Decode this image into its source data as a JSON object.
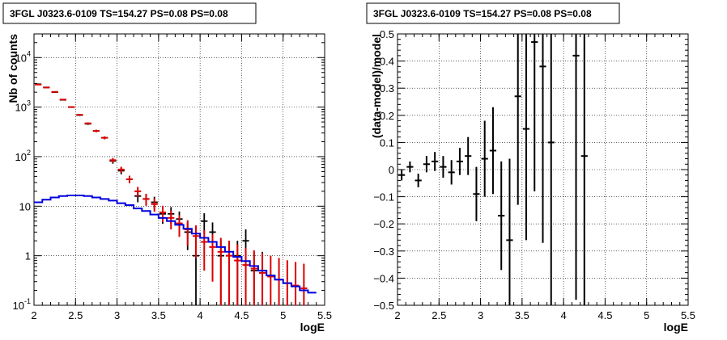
{
  "chart_data": [
    {
      "type": "line",
      "title": "3FGL J0323.6-0109 TS=154.27 PS=0.08 PS=0.08",
      "xlabel": "logE",
      "ylabel": "Nb of counts",
      "xlim": [
        2,
        5.5
      ],
      "ylim": [
        0.1,
        30000
      ],
      "yscale": "log",
      "grid": true,
      "x_ticks": [
        "2",
        "2.5",
        "3",
        "3.5",
        "4",
        "4.5",
        "5",
        "5.5"
      ],
      "y_ticks": [
        {
          "base": "10",
          "exp": "-1"
        },
        {
          "base": "1",
          "exp": ""
        },
        {
          "base": "10",
          "exp": ""
        },
        {
          "base": "10",
          "exp": "2"
        },
        {
          "base": "10",
          "exp": "3"
        },
        {
          "base": "10",
          "exp": "4"
        }
      ],
      "colors": {
        "data": "#000000",
        "model": "#dd0000",
        "background": "#0000dd"
      },
      "series": [
        {
          "style": "errorbar",
          "x": [
            2.05,
            2.15,
            2.25,
            2.35,
            2.45,
            2.55,
            2.65,
            2.75,
            2.85,
            2.95,
            3.05,
            3.15,
            3.25,
            3.35,
            3.45,
            3.55,
            3.65,
            3.75,
            3.85,
            3.95,
            4.05,
            4.15,
            4.25,
            4.35,
            4.45,
            4.55,
            4.65,
            4.75,
            4.85,
            4.95,
            5.05,
            5.15,
            5.25
          ],
          "y": [
            2900,
            2500,
            2000,
            1400,
            1000,
            690,
            460,
            330,
            240,
            82,
            52,
            35,
            16,
            14,
            12,
            7,
            7,
            5.5,
            3,
            1,
            5,
            3,
            1,
            1,
            1,
            2,
            0.5,
            0.5,
            0,
            0,
            0,
            0,
            0
          ],
          "yerr": [
            60,
            55,
            50,
            40,
            35,
            28,
            22,
            18,
            16,
            10,
            8,
            6,
            4,
            3.8,
            3.5,
            2.6,
            2.6,
            2.3,
            1.7,
            1,
            2.2,
            1.7,
            1,
            1,
            1,
            1.4,
            0.7,
            0.7,
            0,
            0,
            0,
            0,
            0
          ]
        },
        {
          "style": "errorbar",
          "x": [
            2.05,
            2.15,
            2.25,
            2.35,
            2.45,
            2.55,
            2.65,
            2.75,
            2.85,
            2.95,
            3.05,
            3.15,
            3.25,
            3.35,
            3.45,
            3.55,
            3.65,
            3.75,
            3.85,
            3.95,
            4.05,
            4.15,
            4.25,
            4.35,
            4.45,
            4.55,
            4.65,
            4.75,
            4.85,
            4.95,
            5.05,
            5.15,
            5.25
          ],
          "y": [
            2850,
            2480,
            2030,
            1420,
            1000,
            700,
            470,
            330,
            240,
            85,
            55,
            35,
            20,
            14,
            11,
            7.5,
            5.8,
            4.5,
            3.4,
            2.5,
            1.9,
            1.5,
            1.2,
            1.0,
            0.8,
            0.65,
            0.55,
            0.45,
            0.38,
            0.33,
            0.28,
            0.25,
            0.22
          ],
          "yerr": [
            55,
            50,
            45,
            38,
            32,
            26,
            22,
            18,
            15,
            9,
            7.4,
            5.9,
            4.5,
            3.7,
            3.3,
            2.7,
            2.4,
            2.1,
            1.8,
            1.6,
            1.4,
            1.2,
            1.1,
            1.0,
            0.9,
            0.8,
            0.74,
            0.67,
            0.62,
            0.57,
            0.53,
            0.5,
            0.47
          ]
        },
        {
          "style": "step",
          "x": [
            2.0,
            2.1,
            2.2,
            2.3,
            2.4,
            2.5,
            2.6,
            2.7,
            2.8,
            2.9,
            3.0,
            3.1,
            3.2,
            3.3,
            3.4,
            3.5,
            3.6,
            3.7,
            3.8,
            3.9,
            4.0,
            4.1,
            4.2,
            4.3,
            4.4,
            4.5,
            4.6,
            4.7,
            4.8,
            4.9,
            5.0,
            5.1,
            5.2,
            5.3
          ],
          "y": [
            12,
            13.5,
            15,
            16,
            16.5,
            16.5,
            16,
            15,
            14,
            13,
            11.5,
            10.5,
            9,
            8,
            6.8,
            5.8,
            5,
            4.2,
            3.5,
            2.8,
            2.3,
            1.9,
            1.5,
            1.2,
            0.95,
            0.78,
            0.62,
            0.5,
            0.4,
            0.33,
            0.28,
            0.24,
            0.2,
            0.18
          ]
        }
      ]
    },
    {
      "type": "scatter",
      "title": "3FGL J0323.6-0109 TS=154.27 PS=0.08 PS=0.08",
      "xlabel": "logE",
      "ylabel": "(data-model)/model",
      "xlim": [
        2,
        5.5
      ],
      "ylim": [
        -0.5,
        0.5
      ],
      "grid": true,
      "x_ticks": [
        "2",
        "2.5",
        "3",
        "3.5",
        "4",
        "4.5",
        "5",
        "5.5"
      ],
      "y_ticks": [
        "−0.5",
        "−0.4",
        "−0.3",
        "−0.2",
        "−0.1",
        "0",
        "0.1",
        "0.2",
        "0.3",
        "0.4",
        "0.5"
      ],
      "colors": {
        "data": "#000000"
      },
      "series": [
        {
          "style": "errorbar",
          "x": [
            2.05,
            2.15,
            2.25,
            2.35,
            2.45,
            2.55,
            2.65,
            2.75,
            2.85,
            2.95,
            3.05,
            3.15,
            3.25,
            3.35,
            3.45,
            3.55,
            3.65,
            3.75,
            3.85,
            4.15,
            4.25
          ],
          "y": [
            -0.02,
            0.01,
            -0.04,
            0.02,
            0.03,
            0.01,
            -0.01,
            0.03,
            0.05,
            -0.09,
            0.04,
            0.07,
            -0.17,
            -0.26,
            0.27,
            0.15,
            0.47,
            0.38,
            0.1,
            0.42,
            0.05
          ],
          "yerr": [
            0.02,
            0.02,
            0.025,
            0.03,
            0.035,
            0.04,
            0.045,
            0.05,
            0.07,
            0.1,
            0.14,
            0.16,
            0.2,
            0.3,
            0.4,
            0.41,
            0.55,
            0.65,
            0.8,
            0.9,
            0.9
          ]
        }
      ]
    }
  ]
}
